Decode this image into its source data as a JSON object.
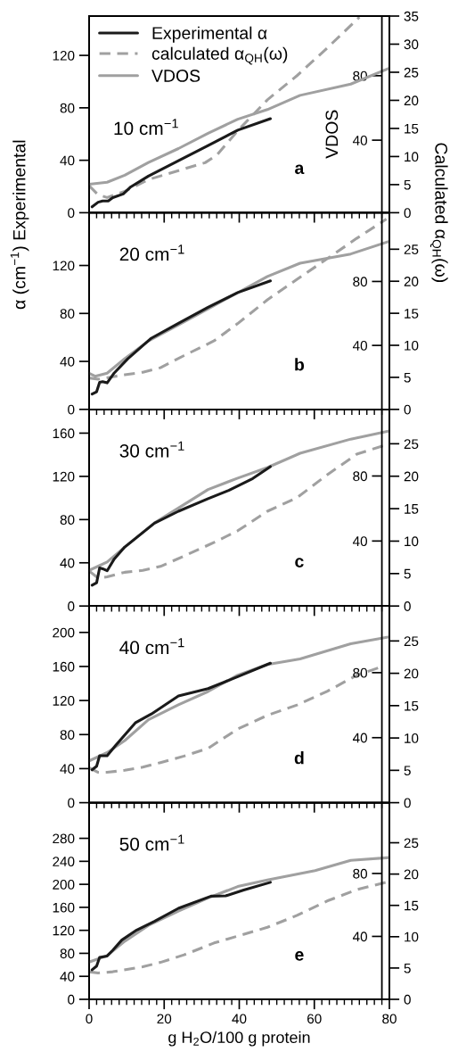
{
  "chart_data": [
    {
      "type": "line",
      "ylabel": "α (cm$^{−1}$) Experimental",
      "y2label": "Calculated α$_{QH}$(ω)",
      "y3label": "VDOS",
      "annotations": [
        "10 cm$^{−1}$",
        "a"
      ],
      "legend": "top left",
      "tick_labels": "y",
      "xlim": [
        0,
        80
      ],
      "xticks": [
        0,
        {
          "value": 2,
          "label": null
        },
        {
          "value": 4,
          "label": null
        },
        {
          "value": 6,
          "label": null
        },
        {
          "value": 8,
          "label": null
        },
        {
          "value": 10,
          "label": null
        },
        {
          "value": 12,
          "label": null
        },
        {
          "value": 14,
          "label": null
        },
        {
          "value": 16,
          "label": null
        },
        {
          "value": 18,
          "label": null
        },
        20,
        {
          "value": 22,
          "label": null
        },
        {
          "value": 24,
          "label": null
        },
        {
          "value": 26,
          "label": null
        },
        {
          "value": 28,
          "label": null
        },
        {
          "value": 30,
          "label": null
        },
        {
          "value": 32,
          "label": null
        },
        {
          "value": 34,
          "label": null
        },
        {
          "value": 36,
          "label": null
        },
        {
          "value": 38,
          "label": null
        },
        40,
        {
          "value": 42,
          "label": null
        },
        {
          "value": 44,
          "label": null
        },
        {
          "value": 46,
          "label": null
        },
        {
          "value": 48,
          "label": null
        },
        {
          "value": 50,
          "label": null
        },
        {
          "value": 52,
          "label": null
        },
        {
          "value": 54,
          "label": null
        },
        {
          "value": 56,
          "label": null
        },
        {
          "value": 58,
          "label": null
        },
        60,
        {
          "value": 62,
          "label": null
        },
        {
          "value": 64,
          "label": null
        },
        {
          "value": 66,
          "label": null
        },
        {
          "value": 68,
          "label": null
        },
        {
          "value": 70,
          "label": null
        },
        {
          "value": 72,
          "label": null
        },
        {
          "value": 74,
          "label": null
        },
        {
          "value": 76,
          "label": null
        },
        {
          "value": 78,
          "label": null
        },
        80
      ],
      "ylim": [
        0,
        150
      ],
      "yticks": [
        0,
        40,
        80,
        120
      ],
      "y2lim": [
        0,
        35
      ],
      "y2ticks": [
        0,
        5,
        10,
        15,
        20,
        25,
        30,
        35
      ],
      "y3lim": [
        -5,
        117
      ],
      "y3ticks": [
        40,
        80
      ],
      "series": [
        {
          "name": "Experimental α",
          "color": "#1a1a1a",
          "x": [
            0.8,
            2.4,
            3.6,
            5.1,
            6.3,
            9.1,
            11.1,
            15.8,
            23.8,
            31.7,
            39.6,
            48.3
          ],
          "values": [
            4.5,
            8,
            9,
            9,
            11.5,
            14.3,
            19.7,
            27.9,
            39.6,
            51.3,
            63,
            71.7
          ]
        },
        {
          "name": "calculated α$_{QH}$(ω)",
          "color": "#a0a0a0",
          "axis": "y2",
          "line_style": "dashed",
          "x": [
            0,
            2.4,
            4.8,
            9.5,
            15.8,
            25.3,
            30.9,
            34.1,
            39.6,
            47.5,
            55.4,
            63.4,
            72
          ],
          "values": [
            4.8,
            3.2,
            2.7,
            3.8,
            5.9,
            7.8,
            8.9,
            10.3,
            14.6,
            20.1,
            24.4,
            29.3,
            34.8
          ]
        },
        {
          "name": "VDOS",
          "color": "#a0a0a0",
          "axis": "y3",
          "x": [
            0,
            4.8,
            9.5,
            15.8,
            23.8,
            31.7,
            39.6,
            47.5,
            56.2,
            69.7,
            80
          ],
          "values": [
            12.7,
            13.9,
            18.3,
            26.1,
            34.8,
            44.3,
            53,
            59,
            67.8,
            74.8,
            84.7
          ]
        }
      ]
    },
    {
      "type": "line",
      "annotations": [
        "20 cm$^{−1}$",
        "b"
      ],
      "tick_labels": "y",
      "xlim": [
        0,
        80
      ],
      "xticks": [
        0,
        {
          "value": 2,
          "label": null
        },
        {
          "value": 4,
          "label": null
        },
        {
          "value": 6,
          "label": null
        },
        {
          "value": 8,
          "label": null
        },
        {
          "value": 10,
          "label": null
        },
        {
          "value": 12,
          "label": null
        },
        {
          "value": 14,
          "label": null
        },
        {
          "value": 16,
          "label": null
        },
        {
          "value": 18,
          "label": null
        },
        20,
        {
          "value": 22,
          "label": null
        },
        {
          "value": 24,
          "label": null
        },
        {
          "value": 26,
          "label": null
        },
        {
          "value": 28,
          "label": null
        },
        {
          "value": 30,
          "label": null
        },
        {
          "value": 32,
          "label": null
        },
        {
          "value": 34,
          "label": null
        },
        {
          "value": 36,
          "label": null
        },
        {
          "value": 38,
          "label": null
        },
        40,
        {
          "value": 42,
          "label": null
        },
        {
          "value": 44,
          "label": null
        },
        {
          "value": 46,
          "label": null
        },
        {
          "value": 48,
          "label": null
        },
        {
          "value": 50,
          "label": null
        },
        {
          "value": 52,
          "label": null
        },
        {
          "value": 54,
          "label": null
        },
        {
          "value": 56,
          "label": null
        },
        {
          "value": 58,
          "label": null
        },
        60,
        {
          "value": 62,
          "label": null
        },
        {
          "value": 64,
          "label": null
        },
        {
          "value": 66,
          "label": null
        },
        {
          "value": 68,
          "label": null
        },
        {
          "value": 70,
          "label": null
        },
        {
          "value": 72,
          "label": null
        },
        {
          "value": 74,
          "label": null
        },
        {
          "value": 76,
          "label": null
        },
        {
          "value": 78,
          "label": null
        },
        80
      ],
      "ylim": [
        0,
        164
      ],
      "yticks": [
        0,
        40,
        80,
        120
      ],
      "y2lim": [
        0,
        30.7
      ],
      "y2ticks": [
        0,
        5,
        10,
        15,
        20,
        25
      ],
      "y3lim": [
        0,
        123
      ],
      "y3ticks": [
        40,
        80
      ],
      "series": [
        {
          "color": "#1a1a1a",
          "x": [
            0.8,
            2,
            2.8,
            3.6,
            4.8,
            6.7,
            10.3,
            16.6,
            23.8,
            31.7,
            39.6,
            48.3
          ],
          "values": [
            12.8,
            14.7,
            22.6,
            23.1,
            22.1,
            30.4,
            42.2,
            59.4,
            71.7,
            85.2,
            97.4,
            107.2
          ]
        },
        {
          "color": "#a0a0a0",
          "axis": "y2",
          "line_style": "dashed",
          "x": [
            0,
            2.4,
            6.3,
            9.5,
            14.3,
            19,
            25.3,
            33.3,
            39.6,
            47.5,
            55.4,
            63.4,
            71.3,
            79.2
          ],
          "values": [
            4.9,
            4.7,
            5.1,
            5.4,
            5.8,
            6.5,
            8.4,
            10.7,
            13.4,
            17.1,
            20.3,
            23.5,
            26.7,
            29.7
          ]
        },
        {
          "color": "#a0a0a0",
          "axis": "y3",
          "x": [
            0,
            1.6,
            4.8,
            9.5,
            15.8,
            23.8,
            31.7,
            39.6,
            47.5,
            56.2,
            69.7,
            80
          ],
          "values": [
            22.6,
            20.7,
            22.6,
            31.7,
            42.8,
            52.8,
            62.9,
            73,
            83.1,
            91.4,
            97.2,
            105.1
          ]
        }
      ]
    },
    {
      "type": "line",
      "annotations": [
        "30 cm$^{−1}$",
        "c"
      ],
      "tick_labels": "y",
      "xlim": [
        0,
        80
      ],
      "xticks": [
        0,
        {
          "value": 2,
          "label": null
        },
        {
          "value": 4,
          "label": null
        },
        {
          "value": 6,
          "label": null
        },
        {
          "value": 8,
          "label": null
        },
        {
          "value": 10,
          "label": null
        },
        {
          "value": 12,
          "label": null
        },
        {
          "value": 14,
          "label": null
        },
        {
          "value": 16,
          "label": null
        },
        {
          "value": 18,
          "label": null
        },
        20,
        {
          "value": 22,
          "label": null
        },
        {
          "value": 24,
          "label": null
        },
        {
          "value": 26,
          "label": null
        },
        {
          "value": 28,
          "label": null
        },
        {
          "value": 30,
          "label": null
        },
        {
          "value": 32,
          "label": null
        },
        {
          "value": 34,
          "label": null
        },
        {
          "value": 36,
          "label": null
        },
        {
          "value": 38,
          "label": null
        },
        40,
        {
          "value": 42,
          "label": null
        },
        {
          "value": 44,
          "label": null
        },
        {
          "value": 46,
          "label": null
        },
        {
          "value": 48,
          "label": null
        },
        {
          "value": 50,
          "label": null
        },
        {
          "value": 52,
          "label": null
        },
        {
          "value": 54,
          "label": null
        },
        {
          "value": 56,
          "label": null
        },
        {
          "value": 58,
          "label": null
        },
        60,
        {
          "value": 62,
          "label": null
        },
        {
          "value": 64,
          "label": null
        },
        {
          "value": 66,
          "label": null
        },
        {
          "value": 68,
          "label": null
        },
        {
          "value": 70,
          "label": null
        },
        {
          "value": 72,
          "label": null
        },
        {
          "value": 74,
          "label": null
        },
        {
          "value": 76,
          "label": null
        },
        {
          "value": 78,
          "label": null
        },
        80
      ],
      "ylim": [
        0,
        182
      ],
      "yticks": [
        0,
        40,
        80,
        120,
        160
      ],
      "y2lim": [
        0,
        30.3
      ],
      "y2ticks": [
        0,
        5,
        10,
        15,
        20,
        25
      ],
      "y3lim": [
        0,
        121
      ],
      "y3ticks": [
        40,
        80
      ],
      "series": [
        {
          "color": "#1a1a1a",
          "x": [
            0.8,
            2,
            2.8,
            3.6,
            4.8,
            6.7,
            9.5,
            17.4,
            23.8,
            31.7,
            37.2,
            43.6,
            48.3
          ],
          "values": [
            19.3,
            21.5,
            35.3,
            34.5,
            32.6,
            43.6,
            54.6,
            76.7,
            87.7,
            99.3,
            107,
            118,
            129
          ]
        },
        {
          "color": "#a0a0a0",
          "axis": "y2",
          "line_style": "dashed",
          "x": [
            0,
            2.4,
            4.8,
            9.5,
            14.3,
            19,
            25.3,
            33.3,
            39.6,
            47.5,
            55.4,
            63.4,
            71.3,
            80
          ],
          "values": [
            5.4,
            4.3,
            4.5,
            5.2,
            5.5,
            6.1,
            7.7,
            9.8,
            11.6,
            14.6,
            16.7,
            20.2,
            23.4,
            25
          ]
        },
        {
          "color": "#a0a0a0",
          "axis": "y3",
          "x": [
            0,
            4.8,
            9.5,
            17.4,
            23.8,
            31.7,
            39.6,
            47.5,
            56.2,
            69.7,
            80
          ],
          "values": [
            21.9,
            27.1,
            36.3,
            51.1,
            60.3,
            71.7,
            78.7,
            85.2,
            94,
            102.7,
            107.7
          ]
        }
      ]
    },
    {
      "type": "line",
      "annotations": [
        "40 cm$^{−1}$",
        "d"
      ],
      "tick_labels": "y",
      "xlim": [
        0,
        80
      ],
      "xticks": [
        0,
        {
          "value": 2,
          "label": null
        },
        {
          "value": 4,
          "label": null
        },
        {
          "value": 6,
          "label": null
        },
        {
          "value": 8,
          "label": null
        },
        {
          "value": 10,
          "label": null
        },
        {
          "value": 12,
          "label": null
        },
        {
          "value": 14,
          "label": null
        },
        {
          "value": 16,
          "label": null
        },
        {
          "value": 18,
          "label": null
        },
        20,
        {
          "value": 22,
          "label": null
        },
        {
          "value": 24,
          "label": null
        },
        {
          "value": 26,
          "label": null
        },
        {
          "value": 28,
          "label": null
        },
        {
          "value": 30,
          "label": null
        },
        {
          "value": 32,
          "label": null
        },
        {
          "value": 34,
          "label": null
        },
        {
          "value": 36,
          "label": null
        },
        {
          "value": 38,
          "label": null
        },
        40,
        {
          "value": 42,
          "label": null
        },
        {
          "value": 44,
          "label": null
        },
        {
          "value": 46,
          "label": null
        },
        {
          "value": 48,
          "label": null
        },
        {
          "value": 50,
          "label": null
        },
        {
          "value": 52,
          "label": null
        },
        {
          "value": 54,
          "label": null
        },
        {
          "value": 56,
          "label": null
        },
        {
          "value": 58,
          "label": null
        },
        60,
        {
          "value": 62,
          "label": null
        },
        {
          "value": 64,
          "label": null
        },
        {
          "value": 66,
          "label": null
        },
        {
          "value": 68,
          "label": null
        },
        {
          "value": 70,
          "label": null
        },
        {
          "value": 72,
          "label": null
        },
        {
          "value": 74,
          "label": null
        },
        {
          "value": 76,
          "label": null
        },
        {
          "value": 78,
          "label": null
        },
        80
      ],
      "ylim": [
        0,
        231
      ],
      "yticks": [
        0,
        40,
        80,
        120,
        160,
        200
      ],
      "y2lim": [
        0,
        30.4
      ],
      "y2ticks": [
        0,
        5,
        10,
        15,
        20,
        25
      ],
      "y3lim": [
        0,
        121
      ],
      "y3ticks": [
        40,
        80
      ],
      "series": [
        {
          "color": "#1a1a1a",
          "x": [
            0.8,
            2,
            2.8,
            4.8,
            7.1,
            12.3,
            16.6,
            23.8,
            31.7,
            39.6,
            48.3
          ],
          "values": [
            38.6,
            42.8,
            55.1,
            55.1,
            67.4,
            93.7,
            104.2,
            125.3,
            134,
            148,
            163.9
          ]
        },
        {
          "color": "#a0a0a0",
          "axis": "y2",
          "line_style": "dashed",
          "x": [
            0,
            2.4,
            4.8,
            9.5,
            14.3,
            19,
            25.3,
            31.7,
            39.6,
            47.5,
            55.4,
            63.4,
            71.3,
            78.4
          ],
          "values": [
            5.4,
            4.7,
            4.7,
            5,
            5.5,
            6.2,
            7.2,
            8.4,
            11.4,
            13.5,
            15.1,
            17.2,
            19.7,
            21.1
          ]
        },
        {
          "color": "#a0a0a0",
          "axis": "y3",
          "x": [
            0,
            4.8,
            9.5,
            15.8,
            23.8,
            31.7,
            39.6,
            47.5,
            56.2,
            69.7,
            80
          ],
          "values": [
            25.7,
            30.8,
            38.2,
            51,
            60.2,
            68.4,
            78.5,
            85,
            88.4,
            97.8,
            102
          ]
        }
      ]
    },
    {
      "type": "line",
      "annotations": [
        "50 cm$^{−1}$",
        "e"
      ],
      "xlabel": "g H$_{2}$O/100 g protein",
      "xlim": [
        0,
        80
      ],
      "xticks": [
        0,
        {
          "value": 2,
          "label": null
        },
        {
          "value": 4,
          "label": null
        },
        {
          "value": 6,
          "label": null
        },
        {
          "value": 8,
          "label": null
        },
        {
          "value": 10,
          "label": null
        },
        {
          "value": 12,
          "label": null
        },
        {
          "value": 14,
          "label": null
        },
        {
          "value": 16,
          "label": null
        },
        {
          "value": 18,
          "label": null
        },
        20,
        {
          "value": 22,
          "label": null
        },
        {
          "value": 24,
          "label": null
        },
        {
          "value": 26,
          "label": null
        },
        {
          "value": 28,
          "label": null
        },
        {
          "value": 30,
          "label": null
        },
        {
          "value": 32,
          "label": null
        },
        {
          "value": 34,
          "label": null
        },
        {
          "value": 36,
          "label": null
        },
        {
          "value": 38,
          "label": null
        },
        40,
        {
          "value": 42,
          "label": null
        },
        {
          "value": 44,
          "label": null
        },
        {
          "value": 46,
          "label": null
        },
        {
          "value": 48,
          "label": null
        },
        {
          "value": 50,
          "label": null
        },
        {
          "value": 52,
          "label": null
        },
        {
          "value": 54,
          "label": null
        },
        {
          "value": 56,
          "label": null
        },
        {
          "value": 58,
          "label": null
        },
        60,
        {
          "value": 62,
          "label": null
        },
        {
          "value": 64,
          "label": null
        },
        {
          "value": 66,
          "label": null
        },
        {
          "value": 68,
          "label": null
        },
        {
          "value": 70,
          "label": null
        },
        {
          "value": 72,
          "label": null
        },
        {
          "value": 74,
          "label": null
        },
        {
          "value": 76,
          "label": null
        },
        {
          "value": 78,
          "label": null
        },
        80
      ],
      "ylim": [
        0,
        342
      ],
      "yticks": [
        0,
        40,
        80,
        120,
        160,
        200,
        240,
        280
      ],
      "y2lim": [
        0,
        31.4
      ],
      "y2ticks": [
        0,
        5,
        10,
        15,
        20,
        25
      ],
      "y3lim": [
        0,
        125
      ],
      "y3ticks": [
        40,
        80
      ],
      "series": [
        {
          "color": "#1a1a1a",
          "x": [
            0.8,
            2,
            2.8,
            4.8,
            6.3,
            8.7,
            12.7,
            17.4,
            23.8,
            32.5,
            36.4,
            41.2,
            48.3
          ],
          "values": [
            51.3,
            57.8,
            72.9,
            75.4,
            85.4,
            103,
            120.6,
            135.7,
            158.3,
            179.4,
            179.9,
            190,
            203.5
          ]
        },
        {
          "color": "#a0a0a0",
          "axis": "y2",
          "line_style": "dashed",
          "x": [
            0,
            2.4,
            6.3,
            14.3,
            19,
            25.3,
            33.3,
            39.6,
            47.5,
            55.4,
            63.4,
            71.3,
            79.2
          ],
          "values": [
            4.4,
            4.2,
            4.4,
            5.2,
            5.9,
            7.1,
            9,
            10.1,
            11.5,
            13.4,
            15.7,
            17.5,
            18.7
          ]
        },
        {
          "color": "#a0a0a0",
          "axis": "y3",
          "x": [
            0,
            4.8,
            9.5,
            15.8,
            23.8,
            31.7,
            39.6,
            47.5,
            60.2,
            69.7,
            80
          ],
          "values": [
            23.7,
            27.7,
            36.9,
            47,
            56.1,
            64.4,
            71.7,
            75.8,
            81.8,
            88.3,
            90.1
          ]
        }
      ]
    }
  ]
}
